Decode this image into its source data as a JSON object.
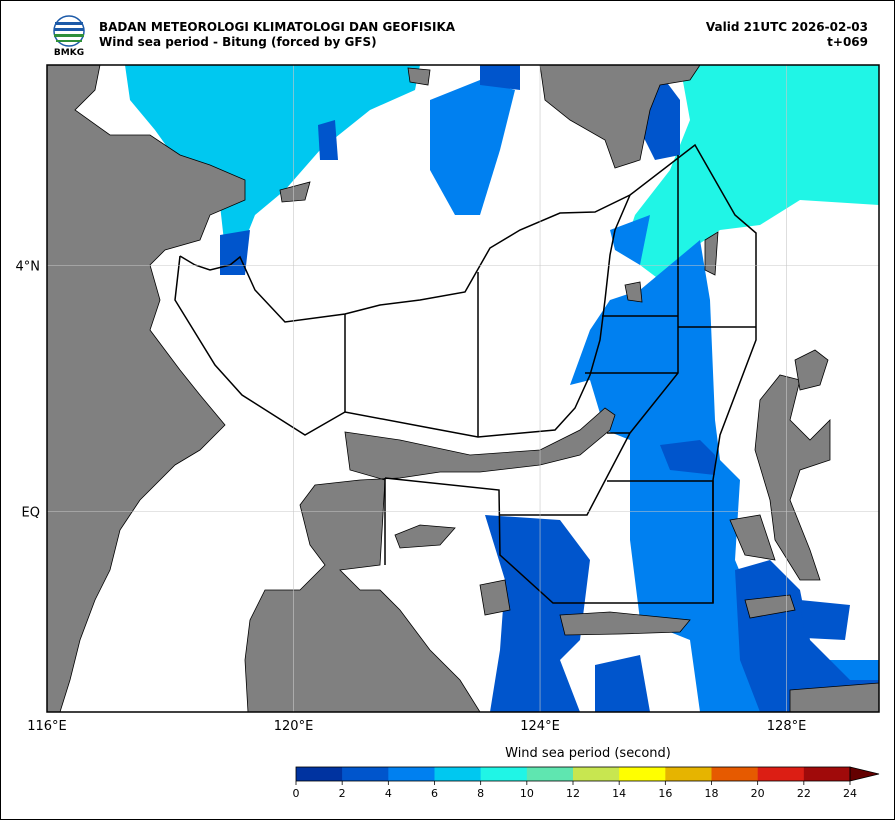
{
  "header": {
    "logo": "BMKG",
    "title": "BADAN METEOROLOGI KLIMATOLOGI DAN GEOFISIKA",
    "subtitle": "Wind sea period - Bitung (forced by GFS)",
    "valid": "Valid 21UTC 2026-02-03",
    "step": "t+069"
  },
  "map": {
    "xlim": [
      116,
      129.5
    ],
    "ylim": [
      -3.25,
      7.25
    ],
    "xticks": [
      {
        "value": 116,
        "label": "116°E"
      },
      {
        "value": 120,
        "label": "120°E"
      },
      {
        "value": 124,
        "label": "124°E"
      },
      {
        "value": 128,
        "label": "128°E"
      }
    ],
    "yticks": [
      {
        "value": 4,
        "label": "4°N"
      },
      {
        "value": 0,
        "label": "EQ"
      }
    ]
  },
  "colorbar": {
    "label": "Wind sea period (second)",
    "ticks": [
      0,
      2,
      4,
      6,
      8,
      10,
      12,
      14,
      16,
      18,
      20,
      22,
      24
    ],
    "colors": [
      "#0033a0",
      "#0055cc",
      "#0080f0",
      "#00c8f0",
      "#20f5e6",
      "#5fe6b0",
      "#c8e650",
      "#ffff00",
      "#e6b400",
      "#e65a00",
      "#dc1e14",
      "#a00a0a"
    ],
    "extend_color": "#640000"
  }
}
